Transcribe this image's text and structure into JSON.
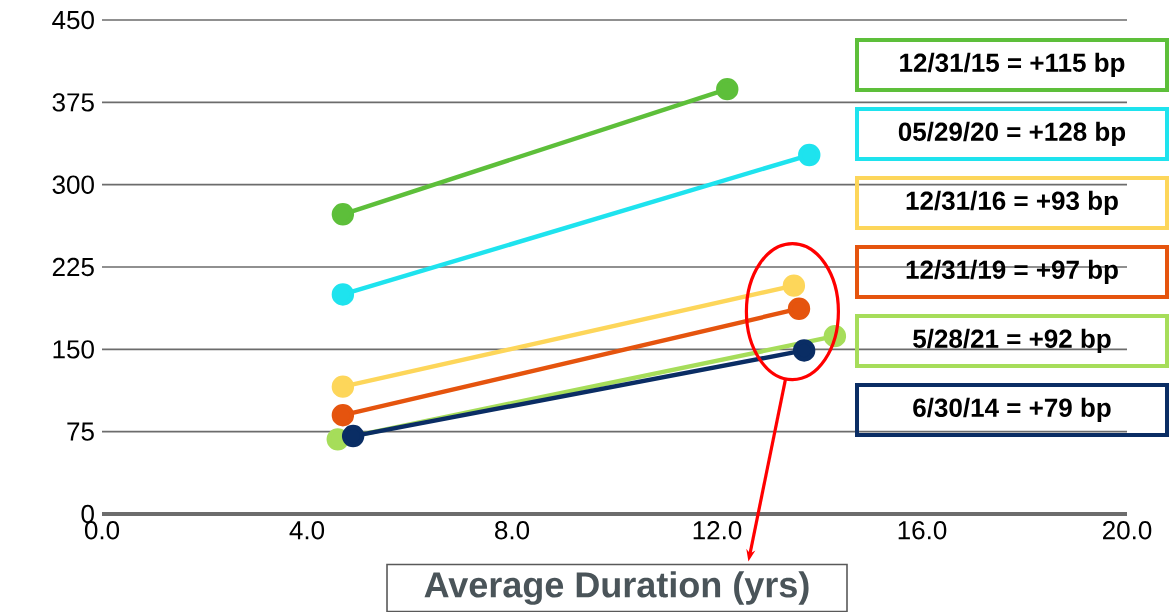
{
  "chart_data": {
    "type": "line",
    "xlabel": "Average Duration (yrs)",
    "xlim": [
      0,
      20
    ],
    "xticks": [
      {
        "value": 0,
        "label": "0.0"
      },
      {
        "value": 4,
        "label": "4.0"
      },
      {
        "value": 8,
        "label": "8.0"
      },
      {
        "value": 12,
        "label": "12.0"
      },
      {
        "value": 16,
        "label": "16.0"
      },
      {
        "value": 20,
        "label": "20.0"
      }
    ],
    "ylim": [
      0,
      450
    ],
    "yticks": [
      0,
      75,
      150,
      225,
      300,
      375,
      450
    ],
    "grid": "y",
    "legend": "right",
    "marker": "circle",
    "line_style": "solid",
    "series": [
      {
        "name": "12/31/15 = +115 bp",
        "color": "#5dbf3a",
        "x": [
          4.7,
          12.2
        ],
        "values": [
          273,
          387
        ]
      },
      {
        "name": "05/29/20 = +128 bp",
        "color": "#1ee3ee",
        "x": [
          4.7,
          13.8
        ],
        "values": [
          200,
          327
        ]
      },
      {
        "name": "12/31/16 = +93 bp",
        "color": "#fdd65a",
        "x": [
          4.7,
          13.5
        ],
        "values": [
          116,
          208
        ]
      },
      {
        "name": "12/31/19 = +97 bp",
        "color": "#e5540e",
        "x": [
          4.7,
          13.6
        ],
        "values": [
          90,
          187
        ]
      },
      {
        "name": "5/28/21 = +92 bp",
        "color": "#a6dd5a",
        "x": [
          4.6,
          14.3
        ],
        "values": [
          68,
          162
        ]
      },
      {
        "name": "6/30/14 = +79 bp",
        "color": "#0a2d64",
        "x": [
          4.9,
          13.7
        ],
        "values": [
          71,
          149
        ]
      }
    ]
  }
}
